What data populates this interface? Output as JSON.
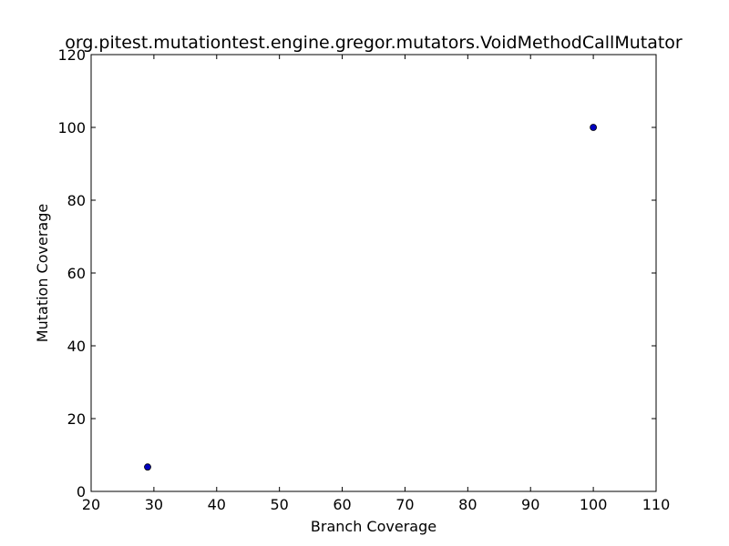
{
  "chart_data": {
    "type": "scatter",
    "title": "org.pitest.mutationtest.engine.gregor.mutators.VoidMethodCallMutator",
    "xlabel": "Branch Coverage",
    "ylabel": "Mutation Coverage",
    "xlim": [
      20,
      110
    ],
    "ylim": [
      0,
      120
    ],
    "xticks": [
      "20",
      "30",
      "40",
      "50",
      "60",
      "70",
      "80",
      "90",
      "100",
      "110"
    ],
    "yticks": [
      "0",
      "20",
      "40",
      "60",
      "80",
      "100",
      "120"
    ],
    "grid": false,
    "points": [
      {
        "x": 29,
        "y": 6.7
      },
      {
        "x": 100,
        "y": 100
      }
    ],
    "marker_color": "#0000bf",
    "marker_edge_color": "#000000"
  }
}
